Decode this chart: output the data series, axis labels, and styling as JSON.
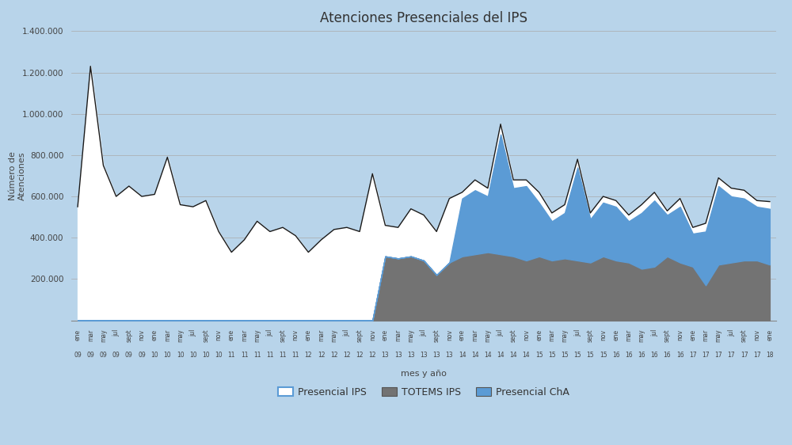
{
  "title": "Atenciones Presenciales del IPS",
  "xlabel": "mes y año",
  "ylabel": "Número de\nAtenciones",
  "background_color": "#b8d4ea",
  "plot_background_color": "#b8d4ea",
  "ylim": [
    0,
    1400000
  ],
  "yticks": [
    0,
    200000,
    400000,
    600000,
    800000,
    1000000,
    1200000,
    1400000
  ],
  "ytick_labels": [
    "0",
    "200.000",
    "400.000",
    "600.000",
    "800.000",
    "1.000.000",
    "1.200.000",
    "1.400.000"
  ],
  "legend_labels": [
    "Presencial IPS",
    "TOTEMS IPS",
    "Presencial ChA"
  ],
  "presencial_ips_color": "#ffffff",
  "presencial_ips_edge": "#1a1a1a",
  "totems_color": "#737373",
  "cha_color": "#5b9bd5",
  "months": [
    "ene",
    "mar",
    "may",
    "jul",
    "sept",
    "nov",
    "ene",
    "mar",
    "may",
    "jul",
    "sept",
    "nov",
    "ene",
    "mar",
    "may",
    "jul",
    "sept",
    "nov",
    "ene",
    "mar",
    "may",
    "jul",
    "sept",
    "nov",
    "ene",
    "mar",
    "may",
    "jul",
    "sept",
    "nov",
    "ene",
    "mar",
    "may",
    "jul",
    "sept",
    "nov",
    "ene",
    "mar",
    "may",
    "jul",
    "sept",
    "nov",
    "ene",
    "mar",
    "may",
    "jul",
    "sept",
    "nov",
    "ene",
    "mar",
    "may",
    "jul",
    "sept",
    "nov",
    "ene"
  ],
  "years": [
    "09",
    "09",
    "09",
    "09",
    "09",
    "09",
    "10",
    "10",
    "10",
    "10",
    "10",
    "10",
    "11",
    "11",
    "11",
    "11",
    "11",
    "11",
    "12",
    "12",
    "12",
    "12",
    "12",
    "12",
    "13",
    "13",
    "13",
    "13",
    "13",
    "13",
    "14",
    "14",
    "14",
    "14",
    "14",
    "14",
    "15",
    "15",
    "15",
    "15",
    "15",
    "15",
    "16",
    "16",
    "16",
    "16",
    "16",
    "16",
    "17",
    "17",
    "17",
    "17",
    "17",
    "17",
    "18"
  ],
  "presencial_ips": [
    550000,
    1230000,
    750000,
    600000,
    650000,
    600000,
    610000,
    790000,
    560000,
    550000,
    580000,
    430000,
    330000,
    390000,
    480000,
    430000,
    450000,
    410000,
    330000,
    390000,
    440000,
    450000,
    430000,
    710000,
    460000,
    450000,
    540000,
    510000,
    430000,
    590000,
    620000,
    680000,
    640000,
    950000,
    680000,
    680000,
    620000,
    520000,
    560000,
    780000,
    520000,
    600000,
    580000,
    510000,
    560000,
    620000,
    530000,
    590000,
    450000,
    470000,
    690000,
    640000,
    630000,
    580000,
    575000
  ],
  "totems_ips": [
    0,
    0,
    0,
    0,
    0,
    0,
    0,
    0,
    0,
    0,
    0,
    0,
    0,
    0,
    0,
    0,
    0,
    0,
    0,
    0,
    0,
    0,
    0,
    0,
    310000,
    300000,
    310000,
    290000,
    220000,
    280000,
    310000,
    320000,
    330000,
    320000,
    310000,
    290000,
    310000,
    290000,
    300000,
    290000,
    280000,
    310000,
    290000,
    280000,
    250000,
    260000,
    310000,
    280000,
    260000,
    170000,
    270000,
    280000,
    290000,
    290000,
    270000
  ],
  "presencial_cha": [
    0,
    0,
    0,
    0,
    0,
    0,
    0,
    0,
    0,
    0,
    0,
    0,
    0,
    0,
    0,
    0,
    0,
    0,
    0,
    0,
    0,
    0,
    0,
    0,
    0,
    0,
    0,
    0,
    0,
    0,
    280000,
    310000,
    270000,
    580000,
    330000,
    360000,
    260000,
    190000,
    220000,
    450000,
    210000,
    260000,
    260000,
    200000,
    270000,
    320000,
    200000,
    270000,
    160000,
    260000,
    380000,
    320000,
    300000,
    260000,
    270000
  ]
}
